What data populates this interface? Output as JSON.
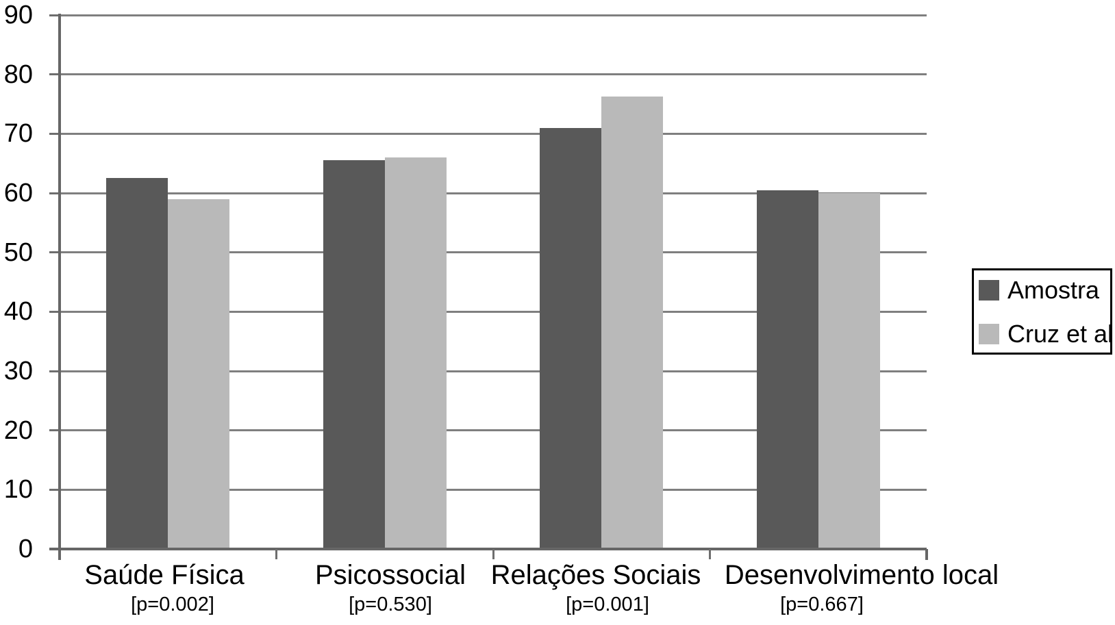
{
  "chart_data": {
    "type": "bar",
    "title": "",
    "categories": [
      {
        "label": "Saúde Física",
        "p_label": "[p=0.002]"
      },
      {
        "label": "Psicossocial",
        "p_label": "[p=0.530]"
      },
      {
        "label": "Relações Sociais",
        "p_label": "[p=0.001]"
      },
      {
        "label": "Desenvolvimento local",
        "p_label": "[p=0.667]"
      }
    ],
    "series": [
      {
        "name": "Amostra",
        "color": "#595959",
        "values": [
          62.5,
          65.5,
          71.0,
          60.5
        ]
      },
      {
        "name": "Cruz et al",
        "color": "#b9b9b9",
        "values": [
          59.0,
          66.0,
          76.3,
          60.0
        ]
      }
    ],
    "ylim": [
      0,
      90
    ],
    "ytick_step": 10,
    "yticks": [
      0,
      10,
      20,
      30,
      40,
      50,
      60,
      70,
      80,
      90
    ],
    "grid": true,
    "legend_position": "right",
    "colors": {
      "gridline": "#7f7f7f",
      "axis": "#666666",
      "text": "#000000",
      "background": "#ffffff",
      "legend_border": "#000000"
    }
  }
}
